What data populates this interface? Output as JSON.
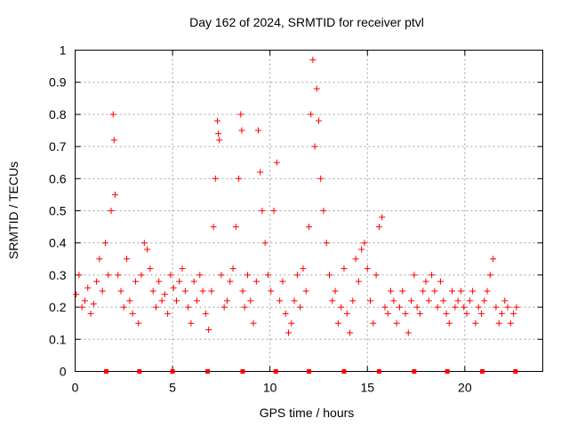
{
  "chart_data": {
    "type": "scatter",
    "title": "Day 162 of 2024, SRMTID for receiver ptvl",
    "xlabel": "GPS time / hours",
    "ylabel": "SRMTID / TECUs",
    "xlim": [
      0,
      24
    ],
    "ylim": [
      0,
      1
    ],
    "xticks": [
      0,
      5,
      10,
      15,
      20
    ],
    "xtick_labels": [
      "0",
      "5",
      "10",
      "15",
      "20"
    ],
    "yticks": [
      0,
      0.1,
      0.2,
      0.3,
      0.4,
      0.5,
      0.6,
      0.7,
      0.8,
      0.9,
      1
    ],
    "ytick_labels": [
      "0",
      "0.1",
      "0.2",
      "0.3",
      "0.4",
      "0.5",
      "0.6",
      "0.7",
      "0.8",
      "0.9",
      "1"
    ],
    "grid": true,
    "marker": "+",
    "color": "#ff0000",
    "series": [
      {
        "name": "SRMTID",
        "x": [
          0.05,
          0.2,
          0.35,
          0.5,
          0.65,
          0.8,
          0.95,
          1.1,
          1.25,
          1.4,
          1.55,
          1.7,
          1.85,
          1.95,
          2.0,
          2.05,
          2.2,
          2.35,
          2.5,
          2.65,
          2.8,
          2.95,
          3.1,
          3.25,
          3.4,
          3.55,
          3.7,
          3.85,
          4.0,
          4.15,
          4.3,
          4.45,
          4.6,
          4.75,
          4.9,
          5.05,
          5.2,
          5.35,
          5.5,
          5.65,
          5.8,
          5.95,
          6.1,
          6.25,
          6.4,
          6.55,
          6.7,
          6.85,
          7.0,
          7.1,
          7.2,
          7.3,
          7.35,
          7.4,
          7.5,
          7.65,
          7.8,
          7.95,
          8.1,
          8.25,
          8.4,
          8.5,
          8.55,
          8.6,
          8.7,
          8.85,
          9.0,
          9.15,
          9.3,
          9.4,
          9.5,
          9.6,
          9.75,
          9.9,
          10.05,
          10.2,
          10.35,
          10.5,
          10.65,
          10.8,
          10.95,
          11.1,
          11.25,
          11.4,
          11.55,
          11.7,
          11.85,
          12.0,
          12.1,
          12.2,
          12.3,
          12.4,
          12.5,
          12.6,
          12.75,
          12.9,
          13.05,
          13.2,
          13.35,
          13.5,
          13.65,
          13.8,
          13.95,
          14.1,
          14.25,
          14.4,
          14.55,
          14.7,
          14.85,
          15.0,
          15.15,
          15.3,
          15.45,
          15.6,
          15.75,
          15.9,
          16.05,
          16.2,
          16.35,
          16.5,
          16.65,
          16.8,
          16.95,
          17.1,
          17.25,
          17.4,
          17.55,
          17.7,
          17.85,
          18.0,
          18.15,
          18.3,
          18.45,
          18.6,
          18.75,
          18.9,
          19.05,
          19.2,
          19.35,
          19.5,
          19.65,
          19.8,
          19.95,
          20.1,
          20.25,
          20.4,
          20.55,
          20.7,
          20.85,
          21.0,
          21.15,
          21.3,
          21.45,
          21.6,
          21.75,
          21.9,
          22.05,
          22.2,
          22.35,
          22.5,
          22.65
        ],
        "y": [
          0.24,
          0.3,
          0.2,
          0.22,
          0.26,
          0.18,
          0.21,
          0.28,
          0.35,
          0.25,
          0.4,
          0.3,
          0.5,
          0.8,
          0.72,
          0.55,
          0.3,
          0.25,
          0.2,
          0.35,
          0.22,
          0.18,
          0.28,
          0.15,
          0.3,
          0.4,
          0.38,
          0.32,
          0.25,
          0.2,
          0.28,
          0.22,
          0.24,
          0.18,
          0.3,
          0.26,
          0.22,
          0.28,
          0.32,
          0.25,
          0.2,
          0.15,
          0.28,
          0.22,
          0.3,
          0.25,
          0.18,
          0.13,
          0.25,
          0.45,
          0.6,
          0.78,
          0.74,
          0.72,
          0.3,
          0.2,
          0.22,
          0.28,
          0.32,
          0.45,
          0.6,
          0.8,
          0.75,
          0.25,
          0.2,
          0.3,
          0.22,
          0.15,
          0.28,
          0.75,
          0.62,
          0.5,
          0.4,
          0.3,
          0.25,
          0.5,
          0.65,
          0.22,
          0.28,
          0.18,
          0.12,
          0.15,
          0.22,
          0.3,
          0.2,
          0.32,
          0.25,
          0.45,
          0.8,
          0.97,
          0.7,
          0.88,
          0.78,
          0.6,
          0.5,
          0.4,
          0.3,
          0.22,
          0.25,
          0.15,
          0.2,
          0.32,
          0.18,
          0.12,
          0.22,
          0.35,
          0.28,
          0.38,
          0.4,
          0.32,
          0.22,
          0.15,
          0.3,
          0.45,
          0.48,
          0.2,
          0.18,
          0.25,
          0.22,
          0.15,
          0.2,
          0.25,
          0.18,
          0.12,
          0.22,
          0.3,
          0.2,
          0.18,
          0.25,
          0.28,
          0.22,
          0.3,
          0.25,
          0.2,
          0.28,
          0.22,
          0.18,
          0.15,
          0.25,
          0.2,
          0.22,
          0.25,
          0.2,
          0.18,
          0.22,
          0.25,
          0.15,
          0.2,
          0.18,
          0.22,
          0.25,
          0.3,
          0.35,
          0.2,
          0.15,
          0.18,
          0.22,
          0.2,
          0.15,
          0.18,
          0.2
        ]
      }
    ],
    "bottom_markers_x": [
      1.6,
      3.3,
      5.0,
      6.8,
      8.6,
      10.3,
      12.0,
      13.8,
      15.6,
      17.4,
      19.1,
      20.9,
      22.6
    ]
  }
}
